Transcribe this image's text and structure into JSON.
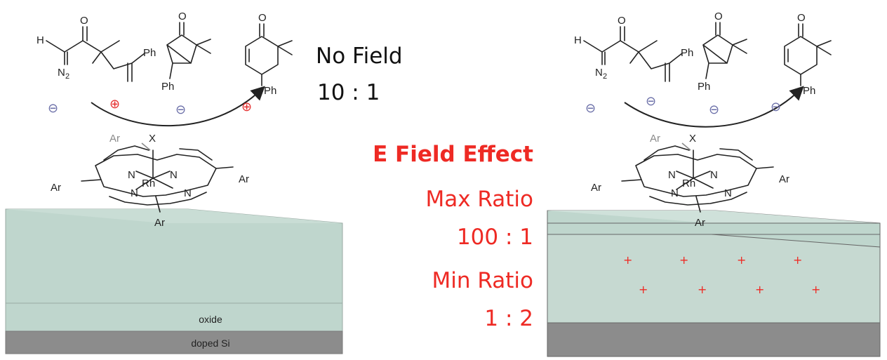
{
  "atoms": {
    "H": "H",
    "O": "O",
    "N2": "N",
    "N2_sub": "2",
    "Ph": "Ph",
    "Ar": "Ar",
    "X": "X",
    "N": "N",
    "Rh": "Rh"
  },
  "charges": {
    "negative": "⊖",
    "positive": "⊕"
  },
  "left_panel": {
    "heading": "No Field",
    "ratio": "10  :  1",
    "oxide_label": "oxide",
    "substrate_label": "doped Si"
  },
  "center_panel": {
    "heading": "E Field Effect",
    "max_label": "Max Ratio",
    "max_value": "100  :  1",
    "min_label": "Min Ratio",
    "min_value": "1  :  2"
  },
  "field_charge": "+",
  "colors": {
    "oxide": "#bfd6cd",
    "silicon": "#8c8c8c",
    "accent_red": "#ee2a24",
    "ion_blue": "#6b6fa8"
  }
}
